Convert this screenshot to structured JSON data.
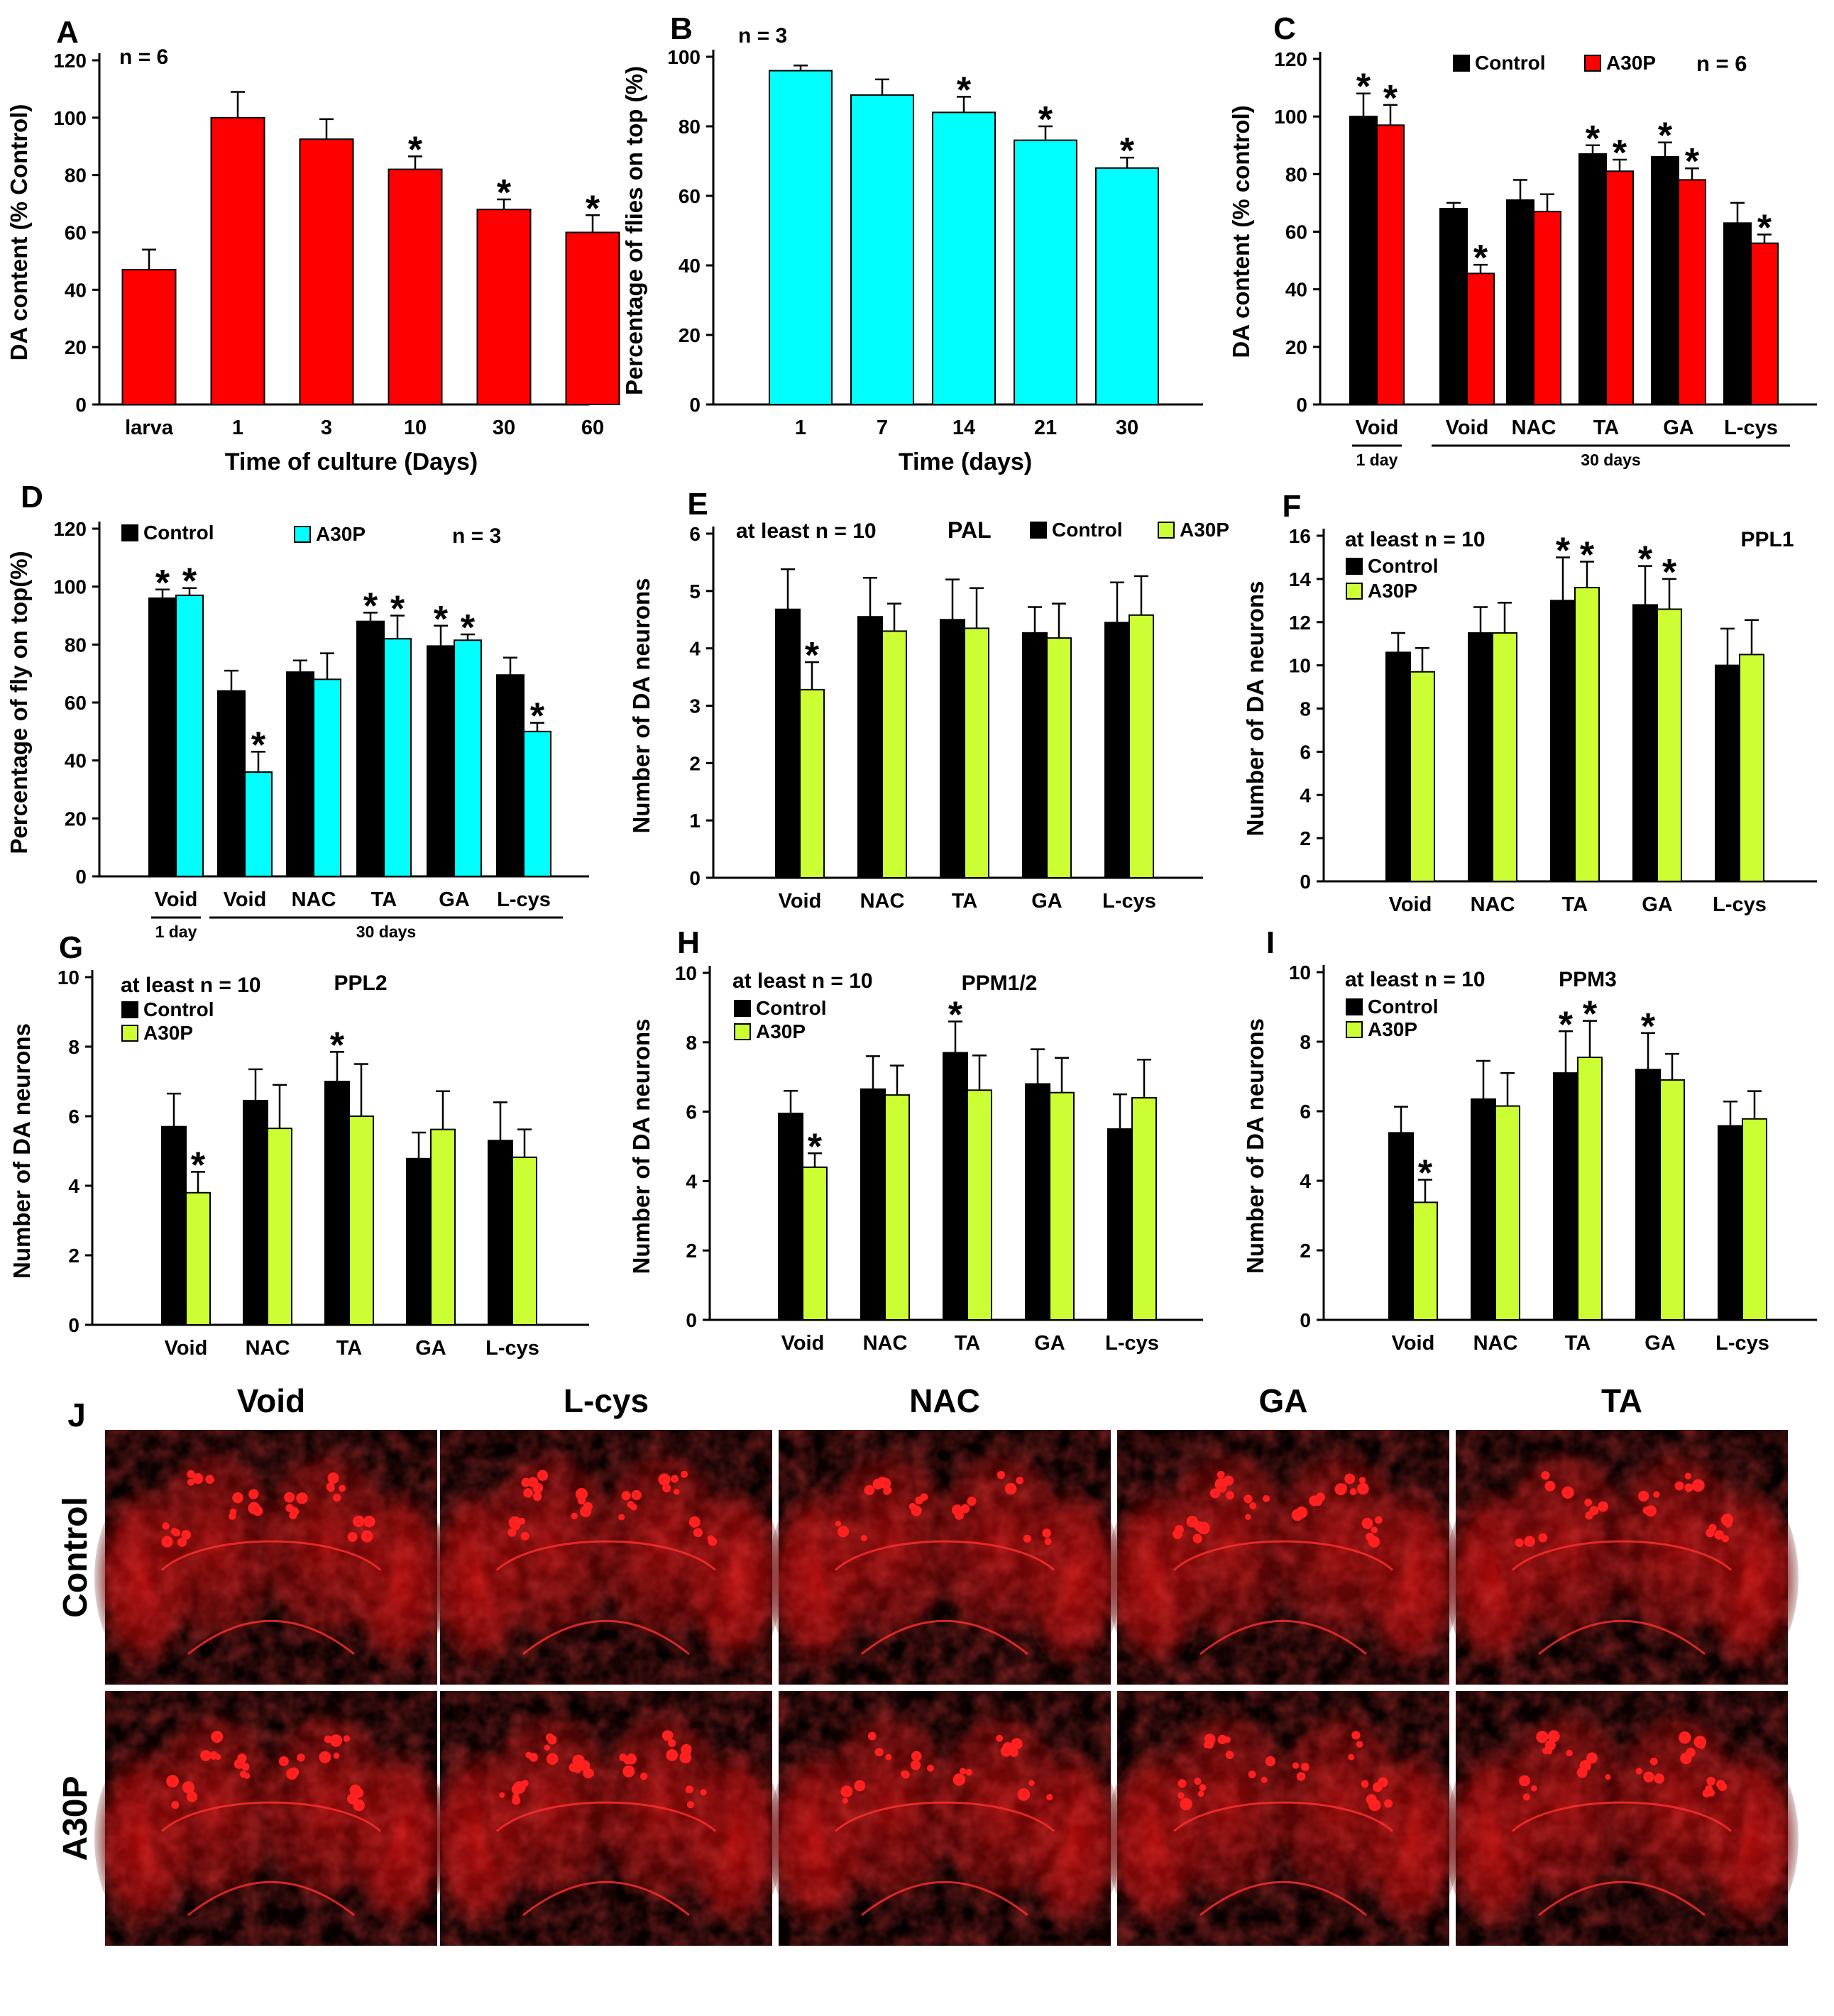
{
  "colors": {
    "red": "#ff0000",
    "cyan": "#00ffff",
    "yellowgreen": "#ccff33",
    "black": "#000000",
    "micro_bg": "#070000",
    "micro_red": "#e01010"
  },
  "chart_data": [
    {
      "panel": "A",
      "type": "bar",
      "n_label": "n = 6",
      "xlabel": "Time of culture (Days)",
      "ylabel": "DA content (% Control)",
      "ylim": [
        0,
        120
      ],
      "ticks": [
        0,
        20,
        40,
        60,
        80,
        100,
        120
      ],
      "categories": [
        "larva",
        "1",
        "3",
        "10",
        "30",
        "60"
      ],
      "series": [
        {
          "name": "",
          "color": "#ff0000",
          "values": [
            47,
            100,
            92.5,
            82,
            68,
            60
          ],
          "errors": [
            7,
            9,
            7,
            4.5,
            3.5,
            6
          ],
          "sig": [
            false,
            false,
            false,
            true,
            true,
            true
          ]
        }
      ]
    },
    {
      "panel": "B",
      "type": "bar",
      "n_label": "n = 3",
      "xlabel": "Time (days)",
      "ylabel": "Percentage of flies on top (%)",
      "ylim": [
        0,
        100
      ],
      "ticks": [
        0,
        20,
        40,
        60,
        80,
        100
      ],
      "categories": [
        "1",
        "7",
        "14",
        "21",
        "30"
      ],
      "series": [
        {
          "name": "",
          "color": "#00ffff",
          "values": [
            96,
            89,
            84,
            76,
            68
          ],
          "errors": [
            1.5,
            4.5,
            4.5,
            4,
            3
          ],
          "sig": [
            false,
            false,
            true,
            true,
            true
          ]
        }
      ]
    },
    {
      "panel": "C",
      "type": "bar",
      "n_label": "n = 6",
      "xlabel": "",
      "ylabel": "DA content (% control)",
      "ylim": [
        0,
        120
      ],
      "ticks": [
        0,
        20,
        40,
        60,
        80,
        100,
        120
      ],
      "categories": [
        "Void",
        "Void",
        "NAC",
        "TA",
        "GA",
        "L-cys"
      ],
      "group_labels": {
        "first": "1 day",
        "rest": "30 days"
      },
      "series": [
        {
          "name": "Control",
          "color": "#000000",
          "values": [
            100,
            68,
            71,
            87,
            86,
            63
          ],
          "errors": [
            8,
            2,
            7,
            3,
            5,
            7
          ],
          "sig": [
            true,
            false,
            false,
            true,
            true,
            false
          ]
        },
        {
          "name": "A30P",
          "color": "#ff0000",
          "values": [
            97,
            45.5,
            67,
            81,
            78,
            56
          ],
          "errors": [
            7,
            3,
            6,
            4,
            4,
            3
          ],
          "sig": [
            true,
            true,
            false,
            true,
            true,
            true
          ]
        }
      ]
    },
    {
      "panel": "D",
      "type": "bar",
      "n_label": "n = 3",
      "xlabel": "",
      "ylabel": "Percentage of fly on top(%)",
      "ylim": [
        0,
        120
      ],
      "ticks": [
        0,
        20,
        40,
        60,
        80,
        100,
        120
      ],
      "categories": [
        "Void",
        "Void",
        "NAC",
        "TA",
        "GA",
        "L-cys"
      ],
      "group_labels": {
        "first": "1 day",
        "rest": "30 days"
      },
      "series": [
        {
          "name": "Control",
          "color": "#000000",
          "values": [
            96,
            64,
            70.5,
            88,
            79.5,
            69.5
          ],
          "errors": [
            3,
            7,
            4,
            3,
            7,
            6
          ],
          "sig": [
            true,
            false,
            false,
            true,
            true,
            false
          ]
        },
        {
          "name": "A30P",
          "color": "#00ffff",
          "values": [
            97,
            36,
            68,
            82,
            81.5,
            50
          ],
          "errors": [
            2.5,
            7,
            9,
            8,
            2,
            3
          ],
          "sig": [
            true,
            true,
            false,
            true,
            true,
            true
          ]
        }
      ]
    },
    {
      "panel": "E",
      "type": "bar",
      "n_label": "at least n = 10",
      "region": "PAL",
      "xlabel": "",
      "ylabel": "Number of DA neurons",
      "ylim": [
        0,
        6
      ],
      "ticks": [
        0,
        1,
        2,
        3,
        4,
        5,
        6
      ],
      "categories": [
        "Void",
        "NAC",
        "TA",
        "GA",
        "L-cys"
      ],
      "series": [
        {
          "name": "Control",
          "color": "#000000",
          "values": [
            4.68,
            4.55,
            4.5,
            4.27,
            4.45
          ],
          "errors": [
            0.7,
            0.68,
            0.7,
            0.45,
            0.7
          ],
          "sig": [
            false,
            false,
            false,
            false,
            false
          ]
        },
        {
          "name": "A30P",
          "color": "#ccff33",
          "values": [
            3.28,
            4.3,
            4.35,
            4.18,
            4.58
          ],
          "errors": [
            0.48,
            0.48,
            0.7,
            0.6,
            0.68
          ],
          "sig": [
            true,
            false,
            false,
            false,
            false
          ]
        }
      ]
    },
    {
      "panel": "F",
      "type": "bar",
      "n_label": "at least n = 10",
      "region": "PPL1",
      "xlabel": "",
      "ylabel": "Number of DA neurons",
      "ylim": [
        0,
        16
      ],
      "ticks": [
        0,
        2,
        4,
        6,
        8,
        10,
        12,
        14,
        16
      ],
      "categories": [
        "Void",
        "NAC",
        "TA",
        "GA",
        "L-cys"
      ],
      "series": [
        {
          "name": "Control",
          "color": "#000000",
          "values": [
            10.6,
            11.5,
            13.0,
            12.8,
            10.0
          ],
          "errors": [
            0.9,
            1.2,
            2.0,
            1.8,
            1.7
          ],
          "sig": [
            false,
            false,
            true,
            true,
            false
          ]
        },
        {
          "name": "A30P",
          "color": "#ccff33",
          "values": [
            9.7,
            11.5,
            13.6,
            12.6,
            10.5
          ],
          "errors": [
            1.1,
            1.4,
            1.2,
            1.4,
            1.6
          ],
          "sig": [
            false,
            false,
            true,
            true,
            false
          ]
        }
      ]
    },
    {
      "panel": "G",
      "type": "bar",
      "n_label": "at least n = 10",
      "region": "PPL2",
      "xlabel": "",
      "ylabel": "Number of DA neurons",
      "ylim": [
        0,
        10
      ],
      "ticks": [
        0,
        2,
        4,
        6,
        8,
        10
      ],
      "categories": [
        "Void",
        "NAC",
        "TA",
        "GA",
        "L-cys"
      ],
      "series": [
        {
          "name": "Control",
          "color": "#000000",
          "values": [
            5.7,
            6.45,
            7.0,
            4.78,
            5.3
          ],
          "errors": [
            0.95,
            0.9,
            0.85,
            0.75,
            1.1
          ],
          "sig": [
            false,
            false,
            true,
            false,
            false
          ]
        },
        {
          "name": "A30P",
          "color": "#ccff33",
          "values": [
            3.8,
            5.65,
            6.0,
            5.62,
            4.82
          ],
          "errors": [
            0.6,
            1.25,
            1.5,
            1.1,
            0.8
          ],
          "sig": [
            true,
            false,
            false,
            false,
            false
          ]
        }
      ]
    },
    {
      "panel": "H",
      "type": "bar",
      "n_label": "at least n = 10",
      "region": "PPM1/2",
      "xlabel": "",
      "ylabel": "Number of DA neurons",
      "ylim": [
        0,
        10
      ],
      "ticks": [
        0,
        2,
        4,
        6,
        8,
        10
      ],
      "categories": [
        "Void",
        "NAC",
        "TA",
        "GA",
        "L-cys"
      ],
      "series": [
        {
          "name": "Control",
          "color": "#000000",
          "values": [
            5.95,
            6.65,
            7.7,
            6.8,
            5.5
          ],
          "errors": [
            0.65,
            0.95,
            0.9,
            1.0,
            1.0
          ],
          "sig": [
            false,
            false,
            true,
            false,
            false
          ]
        },
        {
          "name": "A30P",
          "color": "#ccff33",
          "values": [
            4.4,
            6.48,
            6.62,
            6.55,
            6.4
          ],
          "errors": [
            0.4,
            0.85,
            1.0,
            1.0,
            1.1
          ],
          "sig": [
            true,
            false,
            false,
            false,
            false
          ]
        }
      ]
    },
    {
      "panel": "I",
      "type": "bar",
      "n_label": "at least n = 10",
      "region": "PPM3",
      "xlabel": "",
      "ylabel": "Number of DA neurons",
      "ylim": [
        0,
        10
      ],
      "ticks": [
        0,
        2,
        4,
        6,
        8,
        10
      ],
      "categories": [
        "Void",
        "NAC",
        "TA",
        "GA",
        "L-cys"
      ],
      "series": [
        {
          "name": "Control",
          "color": "#000000",
          "values": [
            5.38,
            6.35,
            7.1,
            7.2,
            5.58
          ],
          "errors": [
            0.75,
            1.1,
            1.2,
            1.05,
            0.7
          ],
          "sig": [
            false,
            false,
            true,
            true,
            false
          ]
        },
        {
          "name": "A30P",
          "color": "#ccff33",
          "values": [
            3.38,
            6.15,
            7.55,
            6.9,
            5.78
          ],
          "errors": [
            0.65,
            0.95,
            1.05,
            0.75,
            0.8
          ],
          "sig": [
            true,
            false,
            true,
            false,
            false
          ]
        }
      ]
    }
  ],
  "micrographs": {
    "panel": "J",
    "columns": [
      "Void",
      "L-cys",
      "NAC",
      "GA",
      "TA"
    ],
    "rows": [
      "Control",
      "A30P"
    ]
  }
}
